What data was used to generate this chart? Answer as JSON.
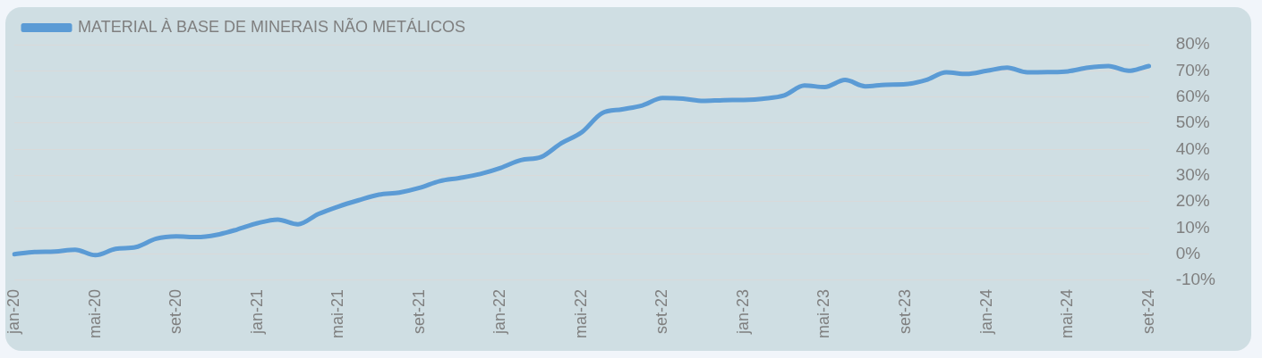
{
  "chart_data": {
    "type": "line",
    "categories": [
      "jan-20",
      null,
      null,
      null,
      "mai-20",
      null,
      null,
      null,
      "set-20",
      null,
      null,
      null,
      "jan-21",
      null,
      null,
      null,
      "mai-21",
      null,
      null,
      null,
      "set-21",
      null,
      null,
      null,
      "jan-22",
      null,
      null,
      null,
      "mai-22",
      null,
      null,
      null,
      "set-22",
      null,
      null,
      null,
      "jan-23",
      null,
      null,
      null,
      "mai-23",
      null,
      null,
      null,
      "set-23",
      null,
      null,
      null,
      "jan-24",
      null,
      null,
      null,
      "mai-24",
      null,
      null,
      null,
      "set-24"
    ],
    "series": [
      {
        "name": "MATERIAL À BASE DE MINERAIS NÃO METÁLICOS",
        "color": "#5b9bd5",
        "values": [
          0,
          0.8,
          1,
          1.7,
          -0.4,
          2,
          2.7,
          5.9,
          6.8,
          6.5,
          7.4,
          9.4,
          11.8,
          13.2,
          11.4,
          15.3,
          18.2,
          20.6,
          22.7,
          23.5,
          25.3,
          27.9,
          29.1,
          30.6,
          32.9,
          35.9,
          37.1,
          42.4,
          46.5,
          53.8,
          55.3,
          56.8,
          59.6,
          59.4,
          58.5,
          58.8,
          58.9,
          59.4,
          60.6,
          64.4,
          63.8,
          66.5,
          64.1,
          64.7,
          64.9,
          66.5,
          69.4,
          68.8,
          70,
          71.2,
          69.4,
          69.5,
          69.8,
          71.2,
          71.8,
          70,
          71.8
        ]
      }
    ],
    "ylim": [
      -10,
      80
    ],
    "yticks": [
      {
        "value": -10,
        "label": "-10%"
      },
      {
        "value": 0,
        "label": "0%"
      },
      {
        "value": 10,
        "label": "10%"
      },
      {
        "value": 20,
        "label": "20%"
      },
      {
        "value": 30,
        "label": "30%"
      },
      {
        "value": 40,
        "label": "40%"
      },
      {
        "value": 50,
        "label": "50%"
      },
      {
        "value": 60,
        "label": "60%"
      },
      {
        "value": 70,
        "label": "70%"
      },
      {
        "value": 80,
        "label": "80%"
      }
    ],
    "grid": "y",
    "legend": "top left",
    "marker": "none",
    "line_style": "solid"
  }
}
